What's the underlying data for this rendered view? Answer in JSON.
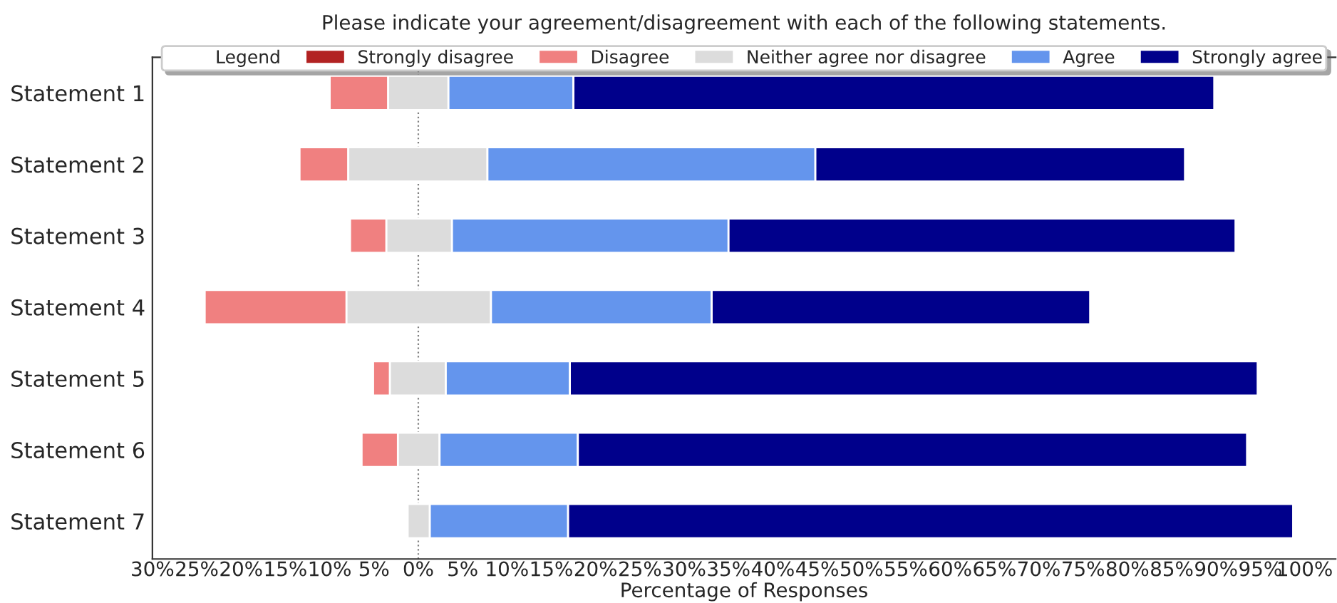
{
  "chart_data": {
    "type": "bar",
    "orientation": "horizontal",
    "title": "Please indicate your agreement/disagreement with each of the following statements.",
    "xlabel": "Percentage of Responses",
    "legend_title": "Legend",
    "categories": [
      "Statement 1",
      "Statement 2",
      "Statement 3",
      "Statement 4",
      "Statement 5",
      "Statement 6",
      "Statement 7"
    ],
    "series": [
      {
        "name": "Strongly disagree",
        "color": "#b22222",
        "values": [
          null,
          null,
          null,
          null,
          null,
          null,
          null
        ]
      },
      {
        "name": "Disagree",
        "color": "#f08080",
        "base": [
          -10.0,
          -13.4,
          -7.7,
          -24.1,
          -5.1,
          -6.4,
          null
        ],
        "values": [
          6.6,
          5.5,
          4.1,
          16.0,
          1.9,
          4.1,
          null
        ]
      },
      {
        "name": "Neither agree nor disagree",
        "color": "#dcdcdc",
        "base": [
          -3.4,
          -7.9,
          -3.6,
          -8.1,
          -3.2,
          -2.3,
          -1.2
        ],
        "values": [
          6.8,
          15.7,
          7.4,
          16.3,
          6.3,
          4.7,
          2.5
        ]
      },
      {
        "name": "Agree",
        "color": "#6495ed",
        "base": [
          3.4,
          7.8,
          3.8,
          8.2,
          3.1,
          2.4,
          1.3
        ],
        "values": [
          14.1,
          37.0,
          31.2,
          24.9,
          14.0,
          15.6,
          15.6
        ]
      },
      {
        "name": "Strongly agree",
        "color": "#00008b",
        "base": [
          17.5,
          44.8,
          35.0,
          33.1,
          17.1,
          18.0,
          16.9
        ],
        "values": [
          72.3,
          41.7,
          57.2,
          42.7,
          77.6,
          75.5,
          81.8
        ]
      }
    ],
    "xlim": [
      -30,
      103.5
    ],
    "xticks": [
      {
        "value": -30,
        "label": "30%"
      },
      {
        "value": -25,
        "label": "25%"
      },
      {
        "value": -20,
        "label": "20%"
      },
      {
        "value": -15,
        "label": "15%"
      },
      {
        "value": -10,
        "label": "10%"
      },
      {
        "value": -5,
        "label": "5%"
      },
      {
        "value": 0,
        "label": "0%"
      },
      {
        "value": 5,
        "label": "5%"
      },
      {
        "value": 10,
        "label": "10%"
      },
      {
        "value": 15,
        "label": "15%"
      },
      {
        "value": 20,
        "label": "20%"
      },
      {
        "value": 25,
        "label": "25%"
      },
      {
        "value": 30,
        "label": "30%"
      },
      {
        "value": 35,
        "label": "35%"
      },
      {
        "value": 40,
        "label": "40%"
      },
      {
        "value": 45,
        "label": "45%"
      },
      {
        "value": 50,
        "label": "50%"
      },
      {
        "value": 55,
        "label": "55%"
      },
      {
        "value": 60,
        "label": "60%"
      },
      {
        "value": 65,
        "label": "65%"
      },
      {
        "value": 70,
        "label": "70%"
      },
      {
        "value": 75,
        "label": "75%"
      },
      {
        "value": 80,
        "label": "80%"
      },
      {
        "value": 85,
        "label": "85%"
      },
      {
        "value": 90,
        "label": "90%"
      },
      {
        "value": 95,
        "label": "95%"
      },
      {
        "value": 100,
        "label": "100%"
      }
    ],
    "ref_lines": [
      {
        "axis": "x",
        "value": 0,
        "color": "#808080",
        "line_style": "dotted"
      }
    ],
    "grid": false,
    "legend": "top"
  }
}
